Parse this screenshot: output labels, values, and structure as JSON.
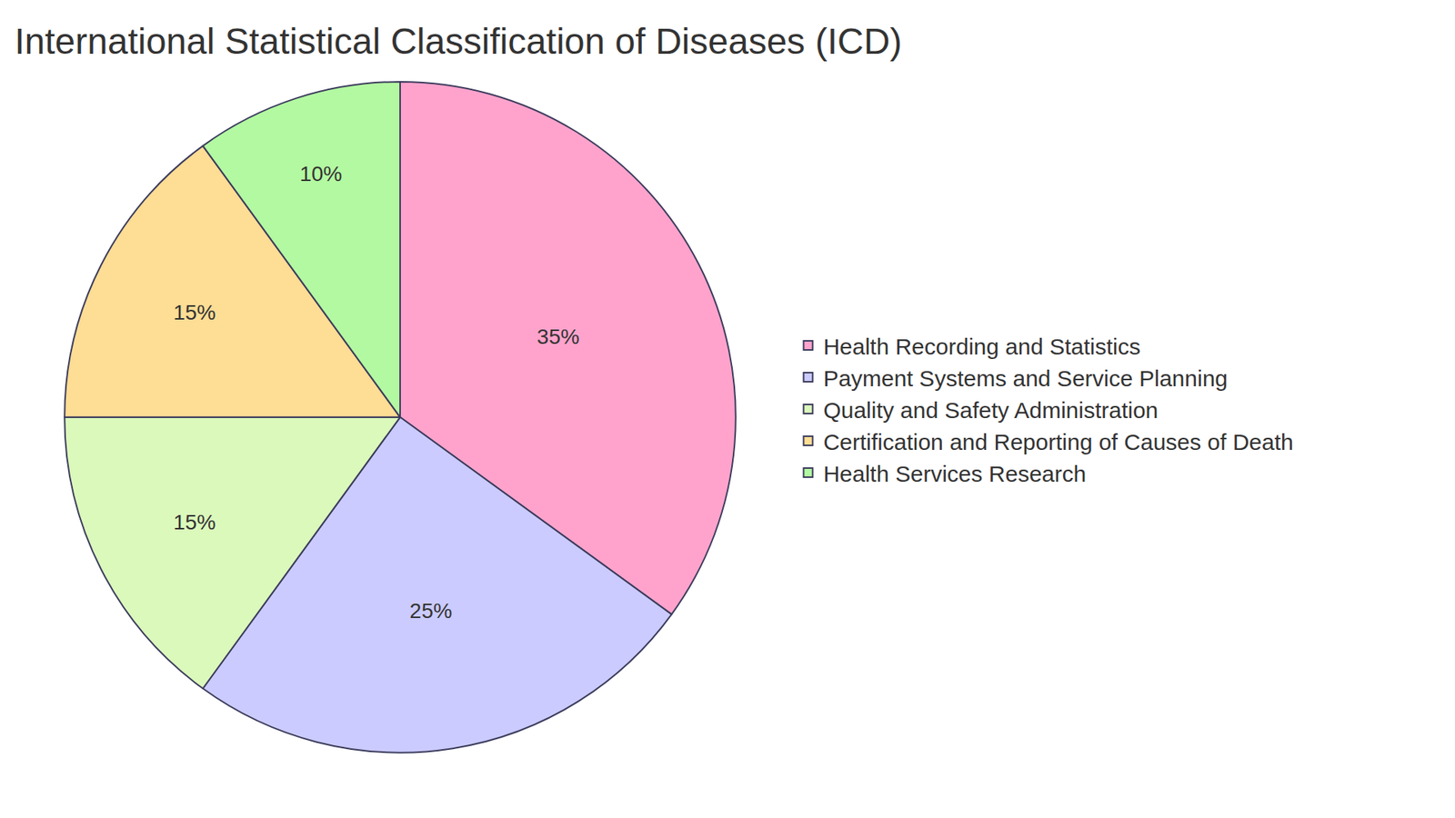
{
  "chart_data": {
    "type": "pie",
    "title": "International Statistical Classification of Diseases (ICD)",
    "categories": [
      "Health Recording and Statistics",
      "Payment Systems and Service Planning",
      "Quality and Safety Administration",
      "Certification and Reporting of Causes of Death",
      "Health Services Research"
    ],
    "values": [
      35,
      25,
      15,
      15,
      10
    ],
    "value_labels": [
      "35%",
      "25%",
      "15%",
      "15%",
      "10%"
    ],
    "colors": [
      "#ffa3cc",
      "#cbcbff",
      "#dbf9bb",
      "#fedd94",
      "#b3f9a1"
    ],
    "data_labels": true,
    "legend": "right"
  }
}
